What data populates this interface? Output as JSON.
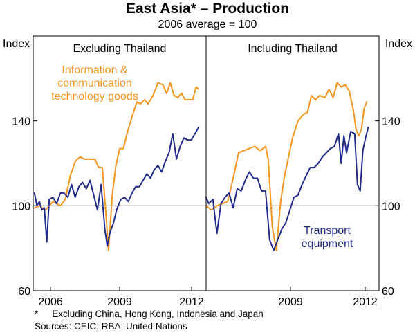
{
  "title": "East Asia* – Production",
  "subtitle": "2006 average = 100",
  "footnotes": {
    "line1_marker": "*",
    "line1": "Excluding China, Hong Kong, Indonesia and Japan",
    "line2": "Sources: CEIC; RBA; United Nations"
  },
  "colors": {
    "ict": "#f7941d",
    "transport": "#1f2a8a",
    "reference_line": "#000000"
  },
  "chart_data": {
    "type": "line",
    "y_label_left": "Index",
    "y_label_right": "Index",
    "ylim": [
      60,
      180
    ],
    "yticks": [
      60,
      100,
      140
    ],
    "reference_line": 100,
    "panels": [
      {
        "title": "Excluding Thailand",
        "xlim": [
          2005.5,
          2012.5
        ],
        "xtick_labels": [
          "2006",
          "2009",
          "2012"
        ],
        "series": [
          {
            "name": "Information & communication technology goods",
            "label_lines": [
              "Information &",
              "communication",
              "technology goods"
            ],
            "color": "#f7941d",
            "x": [
              2005.55,
              2005.75,
              2006.0,
              2006.3,
              2006.6,
              2006.8,
              2007.0,
              2007.2,
              2007.4,
              2007.6,
              2007.8,
              2008.0,
              2008.15,
              2008.3,
              2008.45,
              2008.55,
              2008.7,
              2008.85,
              2009.0,
              2009.15,
              2009.3,
              2009.5,
              2009.7,
              2009.85,
              2010.0,
              2010.15,
              2010.35,
              2010.55,
              2010.75,
              2010.9,
              2011.05,
              2011.2,
              2011.35,
              2011.5,
              2011.65,
              2011.8,
              2011.95,
              2012.1,
              2012.2
            ],
            "values": [
              99,
              100,
              98,
              102,
              100,
              103,
              114,
              121,
              123,
              122,
              122,
              122,
              118,
              118,
              95,
              79,
              105,
              119,
              127,
              127,
              134,
              142,
              149,
              148,
              150,
              148,
              152,
              158,
              157,
              153,
              158,
              152,
              151,
              153,
              150,
              150,
              150,
              156,
              155
            ]
          },
          {
            "name": "Transport equipment",
            "color": "#1f2a8a",
            "x": [
              2005.55,
              2005.65,
              2005.75,
              2005.85,
              2005.95,
              2006.05,
              2006.15,
              2006.3,
              2006.45,
              2006.6,
              2006.75,
              2006.9,
              2007.05,
              2007.2,
              2007.35,
              2007.5,
              2007.65,
              2007.8,
              2007.95,
              2008.1,
              2008.25,
              2008.4,
              2008.5,
              2008.6,
              2008.75,
              2008.9,
              2009.05,
              2009.2,
              2009.35,
              2009.5,
              2009.65,
              2009.8,
              2009.95,
              2010.1,
              2010.25,
              2010.4,
              2010.55,
              2010.7,
              2010.85,
              2011.0,
              2011.15,
              2011.3,
              2011.45,
              2011.6,
              2011.75,
              2011.9,
              2012.05,
              2012.2
            ],
            "values": [
              106,
              100,
              102,
              98,
              99,
              83,
              103,
              104,
              101,
              106,
              106,
              104,
              110,
              104,
              109,
              111,
              108,
              112,
              105,
              98,
              110,
              89,
              81,
              87,
              92,
              99,
              103,
              104,
              102,
              106,
              109,
              109,
              112,
              115,
              113,
              117,
              119,
              116,
              121,
              125,
              134,
              122,
              128,
              132,
              131,
              131,
              134,
              137
            ]
          }
        ]
      },
      {
        "title": "Including Thailand",
        "xlim": [
          2006.1,
          2012.5
        ],
        "xtick_labels": [
          "2009",
          "2012"
        ],
        "series": [
          {
            "name": "Information & communication technology goods",
            "color": "#f7941d",
            "x": [
              2006.1,
              2006.3,
              2006.5,
              2006.7,
              2006.9,
              2007.1,
              2007.3,
              2007.5,
              2007.7,
              2007.9,
              2008.1,
              2008.3,
              2008.4,
              2008.55,
              2008.7,
              2008.85,
              2009.0,
              2009.15,
              2009.3,
              2009.5,
              2009.7,
              2009.85,
              2010.0,
              2010.15,
              2010.3,
              2010.5,
              2010.65,
              2010.8,
              2010.95,
              2011.1,
              2011.25,
              2011.4,
              2011.55,
              2011.65,
              2011.75,
              2011.85,
              2011.95,
              2012.05
            ],
            "values": [
              100,
              98,
              100,
              101,
              102,
              113,
              125,
              126,
              127,
              128,
              126,
              128,
              122,
              90,
              79,
              101,
              114,
              123,
              132,
              140,
              143,
              144,
              152,
              150,
              152,
              151,
              155,
              151,
              158,
              156,
              157,
              154,
              145,
              136,
              133,
              136,
              146,
              149
            ]
          },
          {
            "name": "Transport equipment",
            "label_lines": [
              "Transport",
              "equipment"
            ],
            "color": "#1f2a8a",
            "x": [
              2006.1,
              2006.2,
              2006.35,
              2006.5,
              2006.65,
              2006.8,
              2006.95,
              2007.1,
              2007.25,
              2007.4,
              2007.55,
              2007.7,
              2007.85,
              2008.0,
              2008.15,
              2008.3,
              2008.45,
              2008.6,
              2008.75,
              2008.9,
              2009.05,
              2009.2,
              2009.35,
              2009.5,
              2009.65,
              2009.8,
              2009.95,
              2010.1,
              2010.25,
              2010.4,
              2010.55,
              2010.7,
              2010.85,
              2011.0,
              2011.1,
              2011.2,
              2011.3,
              2011.45,
              2011.6,
              2011.7,
              2011.8,
              2011.9,
              2012.0,
              2012.1
            ],
            "values": [
              104,
              101,
              103,
              87,
              101,
              104,
              106,
              99,
              108,
              107,
              112,
              116,
              113,
              113,
              107,
              107,
              84,
              79,
              84,
              89,
              92,
              98,
              104,
              105,
              110,
              114,
              118,
              118,
              120,
              123,
              125,
              127,
              128,
              134,
              120,
              133,
              125,
              135,
              134,
              110,
              107,
              126,
              132,
              137
            ]
          }
        ]
      }
    ]
  }
}
